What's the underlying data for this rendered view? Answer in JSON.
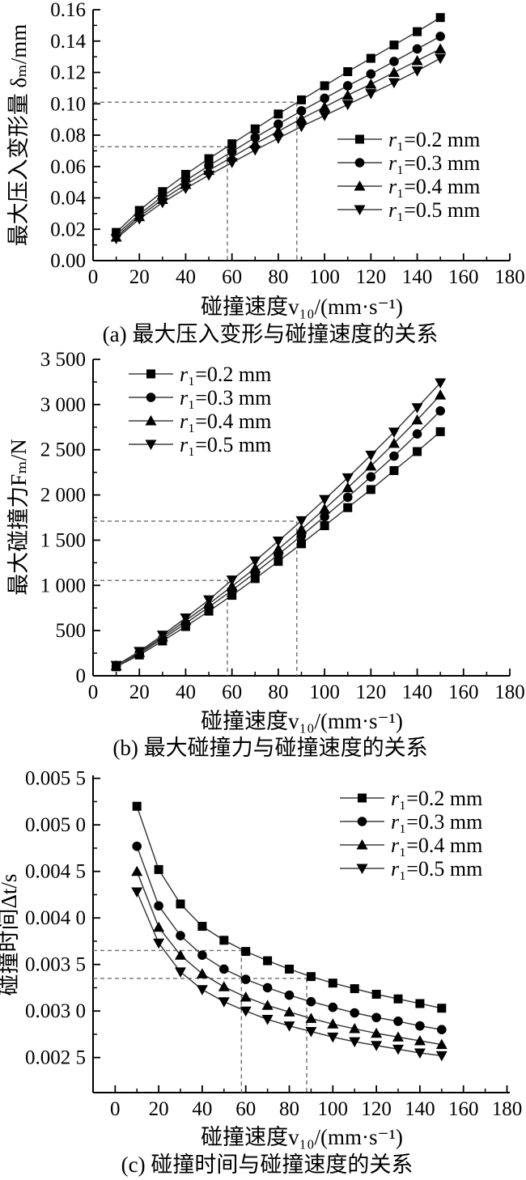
{
  "figure": {
    "background": "#ffffff",
    "ink_color": "#000000",
    "series_line_color": "#3d3d3d",
    "guide_line_color": "#6e6e6e"
  },
  "chart_data": [
    {
      "type": "line",
      "caption": "(a) 最大压入变形与碰撞速度的关系",
      "xlabel": "碰撞速度v₁₀/(mm·s⁻¹)",
      "ylabel": "最大压入变形量 δₘ/mm",
      "xlim": [
        0,
        180
      ],
      "ylim": [
        0,
        0.16
      ],
      "grid": false,
      "legend_position": "inside-right-middle",
      "xticks": {
        "values": [
          0,
          20,
          40,
          60,
          80,
          100,
          120,
          140,
          160,
          180
        ],
        "labels": [
          "0",
          "20",
          "40",
          "60",
          "80",
          "100",
          "120",
          "140",
          "160",
          "180"
        ],
        "minor": [
          10,
          30,
          50,
          70,
          90,
          110,
          130,
          150,
          170
        ]
      },
      "yticks": {
        "values": [
          0,
          0.02,
          0.04,
          0.06,
          0.08,
          0.1,
          0.12,
          0.14,
          0.16
        ],
        "labels": [
          "0.00",
          "0.02",
          "0.04",
          "0.06",
          "0.08",
          "0.10",
          "0.12",
          "0.14",
          "0.16"
        ],
        "minor": [
          0.01,
          0.03,
          0.05,
          0.07,
          0.09,
          0.11,
          0.13,
          0.15
        ]
      },
      "x": [
        10,
        20,
        30,
        40,
        50,
        60,
        70,
        80,
        90,
        100,
        110,
        120,
        130,
        140,
        150
      ],
      "series": [
        {
          "name": "r₁=0.2 mm",
          "marker": "square",
          "values": [
            0.018,
            0.032,
            0.044,
            0.055,
            0.065,
            0.0745,
            0.084,
            0.0935,
            0.1025,
            0.1115,
            0.1205,
            0.129,
            0.1375,
            0.146,
            0.155
          ]
        },
        {
          "name": "r₁=0.3 mm",
          "marker": "circle",
          "values": [
            0.0165,
            0.0295,
            0.041,
            0.051,
            0.0605,
            0.0695,
            0.0785,
            0.087,
            0.0955,
            0.1035,
            0.1115,
            0.119,
            0.127,
            0.135,
            0.143
          ]
        },
        {
          "name": "r₁=0.4 mm",
          "marker": "triangle-up",
          "values": [
            0.015,
            0.028,
            0.039,
            0.0485,
            0.0575,
            0.066,
            0.0745,
            0.0825,
            0.0905,
            0.098,
            0.1055,
            0.1125,
            0.12,
            0.1275,
            0.135
          ]
        },
        {
          "name": "r₁=0.5 mm",
          "marker": "triangle-down",
          "values": [
            0.014,
            0.0265,
            0.037,
            0.046,
            0.0545,
            0.0625,
            0.0705,
            0.078,
            0.0855,
            0.0925,
            0.0995,
            0.1065,
            0.1135,
            0.121,
            0.129
          ]
        }
      ],
      "guides": [
        {
          "x": 58,
          "y": 0.0726
        },
        {
          "x": 88,
          "y": 0.101
        }
      ]
    },
    {
      "type": "line",
      "caption": "(b) 最大碰撞力与碰撞速度的关系",
      "xlabel": "碰撞速度v₁₀/(mm·s⁻¹)",
      "ylabel": "最大碰撞力Fₘ/N",
      "xlim": [
        0,
        180
      ],
      "ylim": [
        0,
        3500
      ],
      "grid": false,
      "legend_position": "inside-top-left",
      "xticks": {
        "values": [
          0,
          20,
          40,
          60,
          80,
          100,
          120,
          140,
          160,
          180
        ],
        "labels": [
          "0",
          "20",
          "40",
          "60",
          "80",
          "100",
          "120",
          "140",
          "160",
          "180"
        ],
        "minor": [
          10,
          30,
          50,
          70,
          90,
          110,
          130,
          150,
          170
        ]
      },
      "yticks": {
        "values": [
          0,
          500,
          1000,
          1500,
          2000,
          2500,
          3000,
          3500
        ],
        "labels": [
          "0",
          "500",
          "1 000",
          "1 500",
          "2 000",
          "2 500",
          "3 000",
          "3 500"
        ],
        "minor": [
          250,
          750,
          1250,
          1750,
          2250,
          2750,
          3250
        ]
      },
      "x": [
        10,
        20,
        30,
        40,
        50,
        60,
        70,
        80,
        90,
        100,
        110,
        120,
        130,
        140,
        150
      ],
      "series": [
        {
          "name": "r₁=0.2 mm",
          "marker": "square",
          "values": [
            100,
            230,
            385,
            545,
            715,
            890,
            1075,
            1265,
            1460,
            1660,
            1860,
            2060,
            2270,
            2480,
            2700
          ]
        },
        {
          "name": "r₁=0.3 mm",
          "marker": "circle",
          "values": [
            105,
            245,
            410,
            580,
            760,
            945,
            1140,
            1340,
            1550,
            1760,
            1975,
            2200,
            2430,
            2675,
            2930
          ]
        },
        {
          "name": "r₁=0.4 mm",
          "marker": "triangle-up",
          "values": [
            110,
            258,
            430,
            610,
            795,
            990,
            1190,
            1400,
            1620,
            1845,
            2080,
            2320,
            2570,
            2830,
            3105
          ]
        },
        {
          "name": "r₁=0.5 mm",
          "marker": "triangle-down",
          "values": [
            115,
            270,
            450,
            640,
            840,
            1060,
            1270,
            1490,
            1715,
            1950,
            2190,
            2440,
            2695,
            2965,
            3240
          ]
        }
      ],
      "guides": [
        {
          "x": 58,
          "y": 1055
        },
        {
          "x": 88,
          "y": 1710
        }
      ]
    },
    {
      "type": "line",
      "caption": "(c) 碰撞时间与碰撞速度的关系",
      "xlabel": "碰撞速度v₁₀/(mm·s⁻¹)",
      "ylabel": "碰撞时间Δt/s",
      "xlim": [
        -10,
        181
      ],
      "ylim": [
        0.00212,
        0.0055
      ],
      "grid": false,
      "legend_position": "inside-top-right",
      "xticks": {
        "values": [
          0,
          20,
          40,
          60,
          80,
          100,
          120,
          140,
          160,
          180
        ],
        "labels": [
          "0",
          "20",
          "40",
          "60",
          "80",
          "100",
          "120",
          "140",
          "160",
          "180"
        ],
        "minor": [
          10,
          30,
          50,
          70,
          90,
          110,
          130,
          150,
          170
        ]
      },
      "yticks": {
        "values": [
          0.0025,
          0.003,
          0.0035,
          0.004,
          0.0045,
          0.005,
          0.0055
        ],
        "labels": [
          "0.002 5",
          "0.003 0",
          "0.003 5",
          "0.004 0",
          "0.004 5",
          "0.005 0",
          "0.005 5"
        ],
        "minor": [
          0.00275,
          0.00325,
          0.00375,
          0.00425,
          0.00475,
          0.00525
        ]
      },
      "x": [
        10,
        20,
        30,
        40,
        50,
        60,
        70,
        80,
        90,
        100,
        110,
        120,
        130,
        140,
        150
      ],
      "series": [
        {
          "name": "r₁=0.2 mm",
          "marker": "square",
          "values": [
            0.0052,
            0.00452,
            0.00415,
            0.00391,
            0.00376,
            0.00364,
            0.00354,
            0.00345,
            0.00337,
            0.0033,
            0.00324,
            0.00318,
            0.00313,
            0.00308,
            0.00303
          ]
        },
        {
          "name": "r₁=0.3 mm",
          "marker": "circle",
          "values": [
            0.00477,
            0.00413,
            0.00381,
            0.0036,
            0.00345,
            0.00334,
            0.00325,
            0.00317,
            0.0031,
            0.00304,
            0.00298,
            0.00293,
            0.00289,
            0.00284,
            0.0028
          ]
        },
        {
          "name": "r₁=0.4 mm",
          "marker": "triangle-up",
          "values": [
            0.0045,
            0.0039,
            0.0036,
            0.0034,
            0.00326,
            0.00315,
            0.00306,
            0.00299,
            0.00292,
            0.00286,
            0.00281,
            0.00276,
            0.00272,
            0.00268,
            0.00264
          ]
        },
        {
          "name": "r₁=0.5 mm",
          "marker": "triangle-down",
          "values": [
            0.00428,
            0.00373,
            0.00342,
            0.00323,
            0.0031,
            0.003,
            0.00291,
            0.00284,
            0.00278,
            0.00272,
            0.00267,
            0.00263,
            0.00259,
            0.00255,
            0.00252
          ]
        }
      ],
      "guides": [
        {
          "x": 58,
          "y": 0.00365
        },
        {
          "x": 88,
          "y": 0.00335
        }
      ]
    }
  ]
}
